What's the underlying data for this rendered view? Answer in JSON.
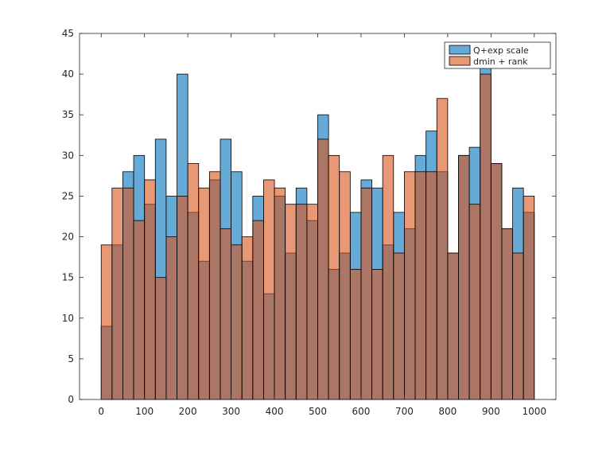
{
  "chart_data": {
    "type": "bar",
    "bin_edges": [
      0,
      25,
      50,
      75,
      100,
      125,
      150,
      175,
      200,
      225,
      250,
      275,
      300,
      325,
      350,
      375,
      400,
      425,
      450,
      475,
      500,
      525,
      550,
      575,
      600,
      625,
      650,
      675,
      700,
      725,
      750,
      775,
      800,
      825,
      850,
      875,
      900,
      925,
      950,
      975,
      1000
    ],
    "series": [
      {
        "name": "Q+exp scale",
        "color": "#0072BD",
        "values": [
          9,
          19,
          28,
          30,
          24,
          32,
          25,
          40,
          23,
          17,
          27,
          32,
          28,
          17,
          25,
          13,
          25,
          18,
          26,
          22,
          35,
          16,
          18,
          23,
          27,
          26,
          19,
          23,
          21,
          30,
          33,
          28,
          18,
          30,
          31,
          41,
          29,
          21,
          26,
          23
        ]
      },
      {
        "name": "dmin + rank",
        "color": "#D95319",
        "values": [
          19,
          26,
          26,
          22,
          27,
          15,
          20,
          25,
          29,
          26,
          28,
          21,
          19,
          20,
          22,
          27,
          26,
          24,
          24,
          24,
          32,
          30,
          28,
          16,
          26,
          16,
          30,
          18,
          28,
          28,
          28,
          37,
          18,
          30,
          24,
          40,
          29,
          21,
          18,
          25
        ]
      }
    ],
    "xlim": [
      -50,
      1050
    ],
    "ylim": [
      0,
      45
    ],
    "xticks": [
      0,
      100,
      200,
      300,
      400,
      500,
      600,
      700,
      800,
      900,
      1000
    ],
    "yticks": [
      0,
      5,
      10,
      15,
      20,
      25,
      30,
      35,
      40,
      45
    ],
    "face_alpha": 0.6,
    "legend_position": "top-right",
    "grid": false
  }
}
